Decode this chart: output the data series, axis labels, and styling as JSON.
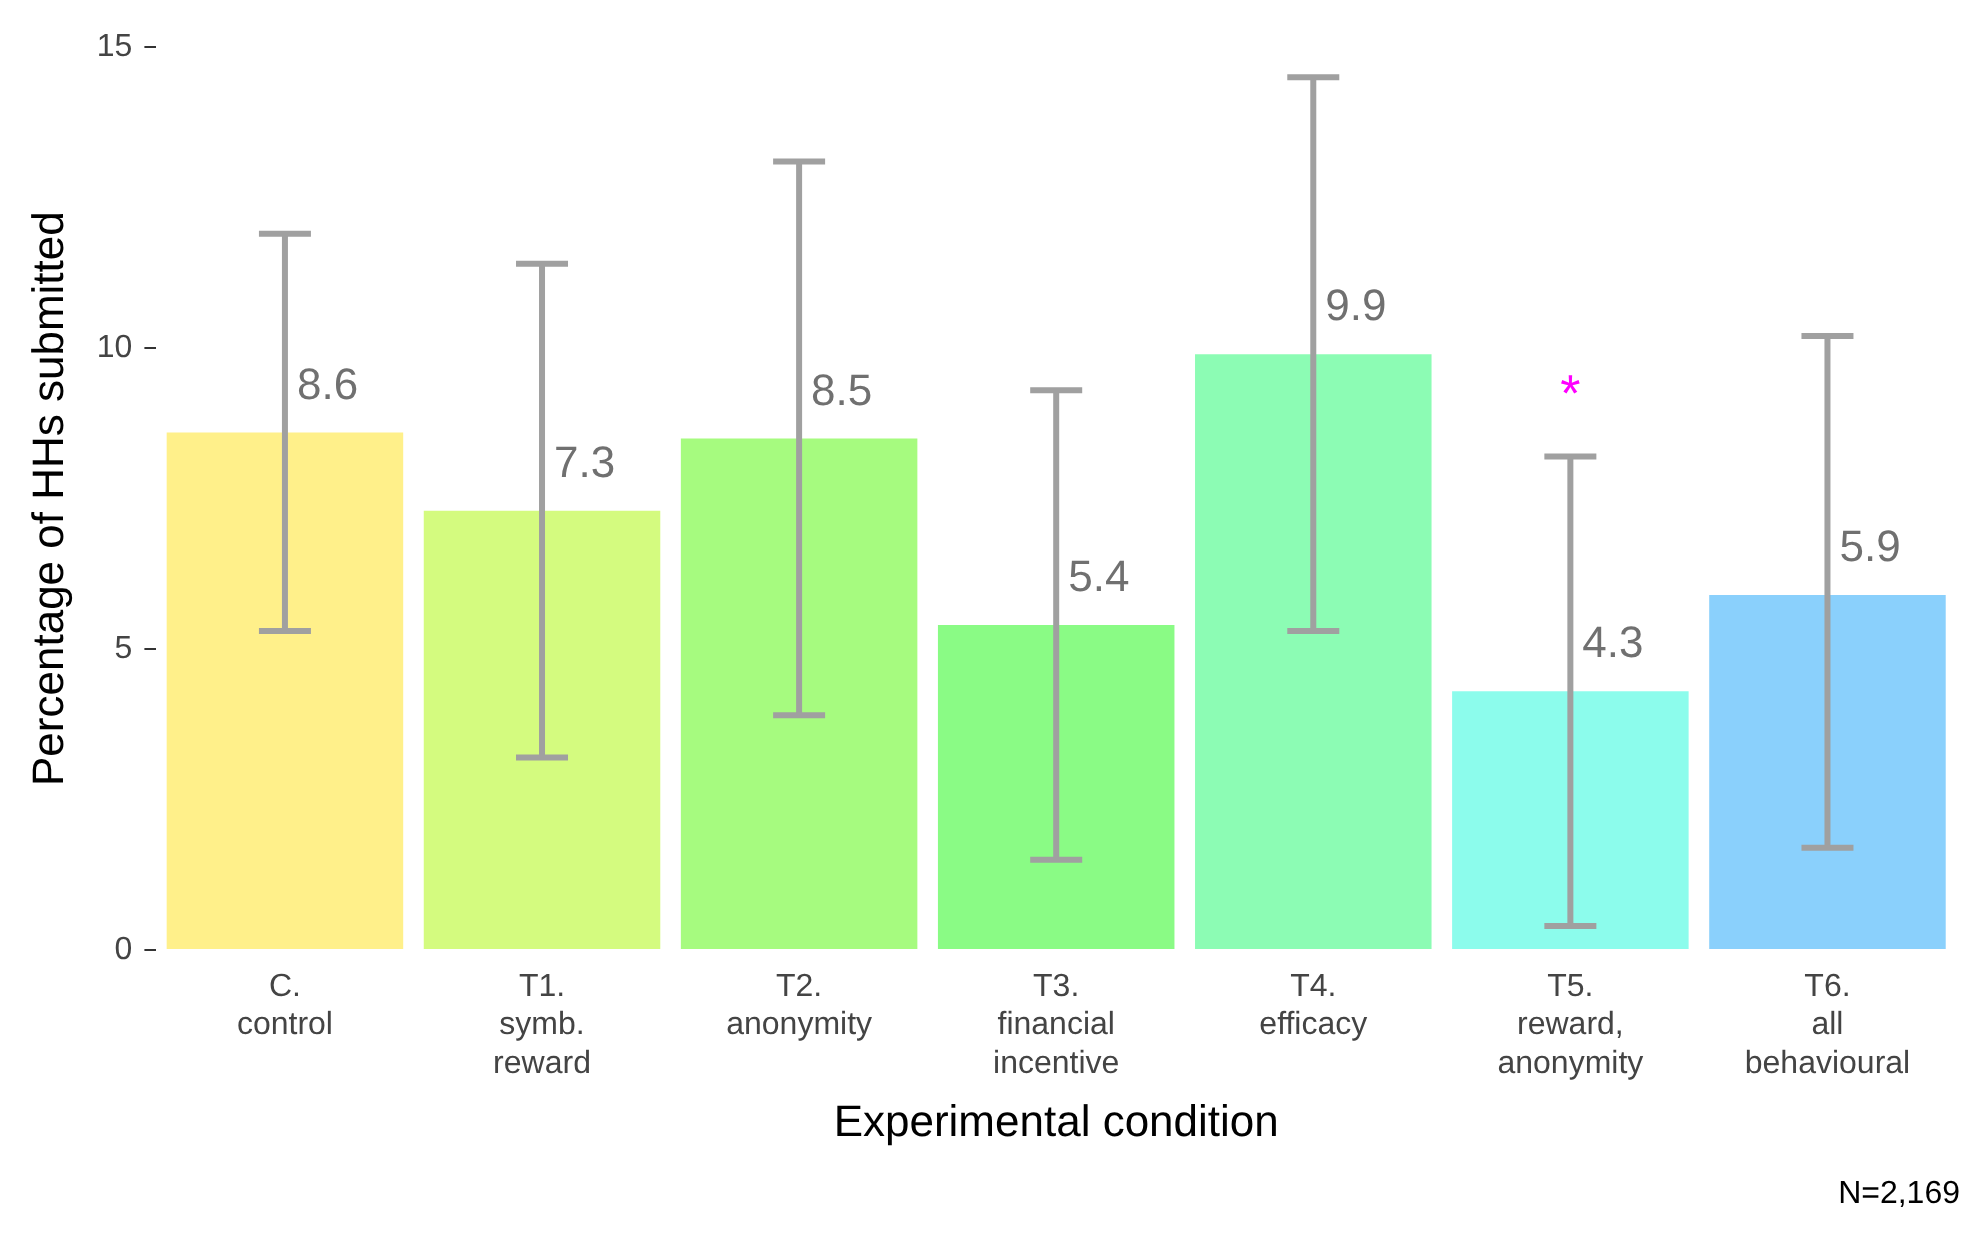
{
  "chart_data": {
    "type": "bar",
    "xlabel": "Experimental condition",
    "ylabel": "Percentage of HHs submitted",
    "categories": [
      "C.\ncontrol",
      "T1.\nsymb.\nreward",
      "T2.\nanonymity",
      "T3.\nfinancial\nincentive",
      "T4.\nefficacy",
      "T5.\nreward,\nanonymity",
      "T6.\nall\nbehavioural"
    ],
    "values": [
      8.6,
      7.3,
      8.5,
      5.4,
      9.9,
      4.3,
      5.9
    ],
    "colors": [
      "#fff08a",
      "#d4fb7f",
      "#a6fb7f",
      "#8afb85",
      "#8cfcb4",
      "#8cfcec",
      "#8ad0fc"
    ],
    "errors": [
      [
        5.3,
        11.9
      ],
      [
        3.2,
        11.4
      ],
      [
        3.9,
        13.1
      ],
      [
        1.5,
        9.3
      ],
      [
        5.3,
        14.5
      ],
      [
        0.4,
        8.2
      ],
      [
        1.7,
        10.2
      ]
    ],
    "data_labels": true,
    "ylim": [
      0,
      15
    ],
    "yticks": [
      0,
      5,
      10,
      15
    ],
    "grid": false,
    "legend": false,
    "annotations": [
      {
        "text": "*",
        "x": "T5.\nreward,\nanonymity",
        "y": 8.2
      },
      "N=2,169"
    ]
  }
}
